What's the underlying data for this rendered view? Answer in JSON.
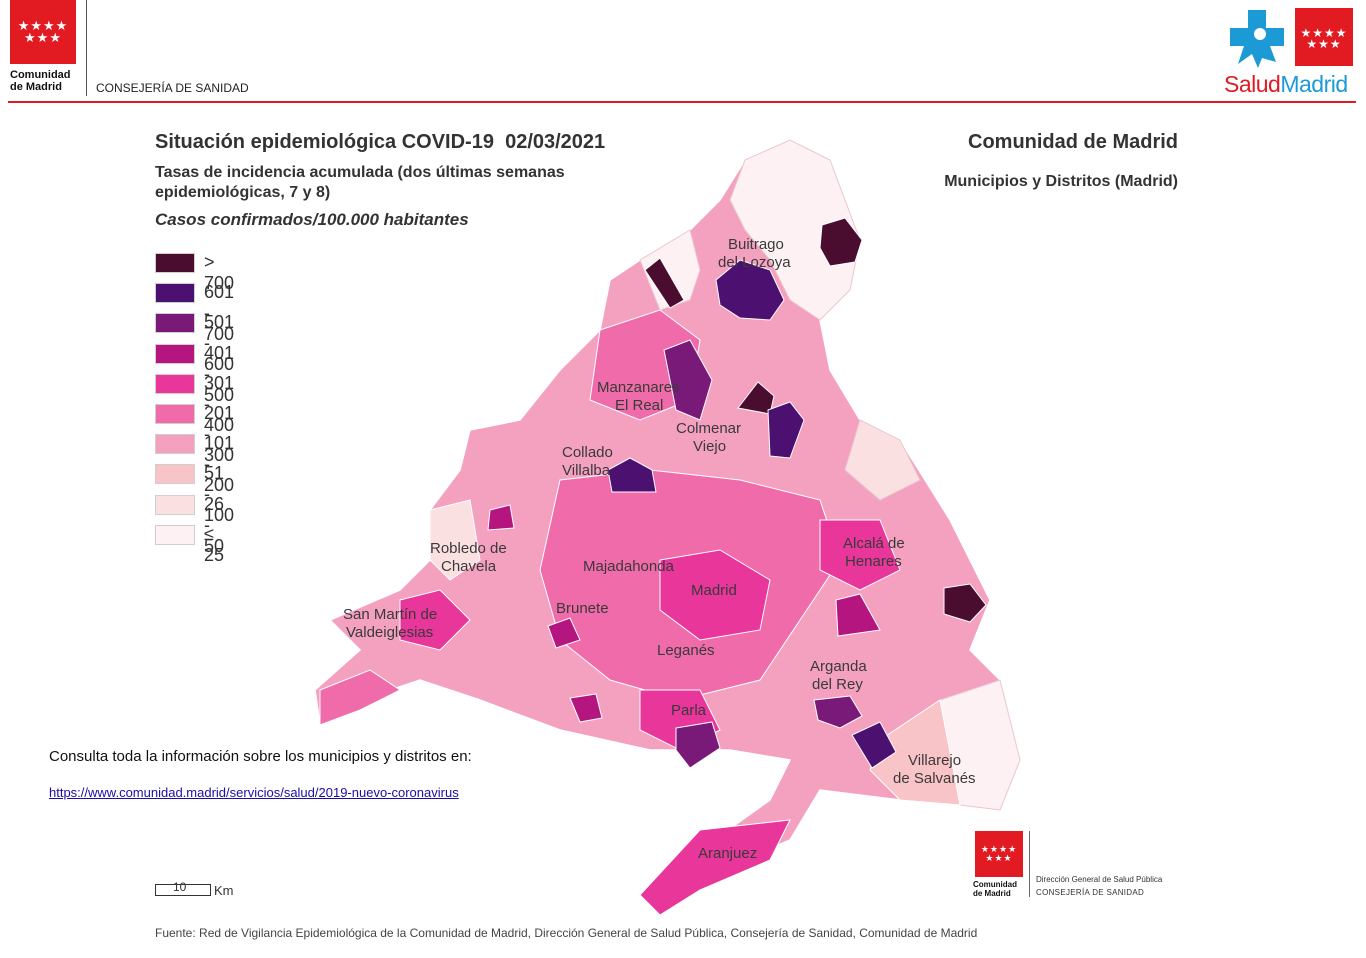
{
  "header": {
    "org_name_line1": "Comunidad",
    "org_name_line2": "de Madrid",
    "consejeria": "CONSEJERÍA DE SANIDAD",
    "brand_part1": "Salud",
    "brand_part2": "Madrid",
    "flag_stars": "★★★★\n★★★",
    "brand_red": "#e21a22",
    "brand_blue": "#1b9ad6"
  },
  "titles": {
    "main": "Situación epidemiológica COVID-19  02/03/2021",
    "subtitle": "Tasas de incidencia acumulada (dos últimas semanas epidemiológicas, 7 y 8)",
    "cases": "Casos confirmados/100.000 habitantes",
    "region": "Comunidad de Madrid",
    "region_sub": "Municipios y Distritos (Madrid)"
  },
  "legend": [
    {
      "label": "> 700",
      "color": "#4a0d2f"
    },
    {
      "label": "601 - 700",
      "color": "#4b1070"
    },
    {
      "label": "501 - 600",
      "color": "#7a1a78"
    },
    {
      "label": "401 - 500",
      "color": "#b5157e"
    },
    {
      "label": "301 - 400",
      "color": "#e8369a"
    },
    {
      "label": "201 - 300",
      "color": "#ef6ba9"
    },
    {
      "label": "101 - 200",
      "color": "#f4a1c0"
    },
    {
      "label": "51 - 100",
      "color": "#f8c4c8"
    },
    {
      "label": "26 - 50",
      "color": "#fbe0e2"
    },
    {
      "label": "≤ 25",
      "color": "#fdf1f3"
    }
  ],
  "map_labels": {
    "buitrago_1": "Buitrago",
    "buitrago_2": "del Lozoya",
    "manzanares_1": "Manzanares",
    "manzanares_2": "El Real",
    "colmenar_1": "Colmenar",
    "colmenar_2": "Viejo",
    "collado_1": "Collado",
    "collado_2": "Villalba",
    "robledo_1": "Robledo de",
    "robledo_2": "Chavela",
    "alcala_1": "Alcalá de",
    "alcala_2": "Henares",
    "majadahonda": "Majadahonda",
    "madrid": "Madrid",
    "brunete": "Brunete",
    "sanmartin_1": "San Martín de",
    "sanmartin_2": "Valdeiglesias",
    "leganes": "Leganés",
    "arganda_1": "Arganda",
    "arganda_2": "del Rey",
    "parla": "Parla",
    "villarejo_1": "Villarejo",
    "villarejo_2": "de Salvanés",
    "aranjuez": "Aranjuez"
  },
  "footer": {
    "consulta": "Consulta toda la información sobre los municipios y distritos en:",
    "link": "https://www.comunidad.madrid/servicios/salud/2019-nuevo-coronavirus",
    "scale_value": "10",
    "scale_unit": "Km",
    "fuente": "Fuente: Red de Vigilancia Epidemiológica de la Comunidad de Madrid, Dirección General de Salud Pública, Consejería de Sanidad, Comunidad de Madrid",
    "dg_org_line1": "Comunidad",
    "dg_org_line2": "de Madrid",
    "dg_line1": "Dirección General de Salud Pública",
    "dg_line2": "CONSEJERÍA DE SANIDAD"
  }
}
